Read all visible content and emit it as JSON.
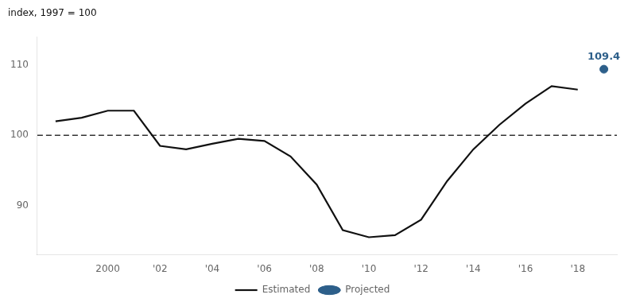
{
  "chart_data": {
    "type": "line",
    "y_label": "index, 1997 = 100",
    "x": [
      1998,
      1999,
      2000,
      2001,
      2002,
      2003,
      2004,
      2005,
      2006,
      2007,
      2008,
      2009,
      2010,
      2011,
      2012,
      2013,
      2014,
      2015,
      2016,
      2017,
      2018
    ],
    "series": [
      {
        "name": "Estimated",
        "color": "#111111",
        "values": [
          102.0,
          102.5,
          103.5,
          103.5,
          98.5,
          98.0,
          98.8,
          99.5,
          99.2,
          97.0,
          93.0,
          86.5,
          85.5,
          85.8,
          88.0,
          93.5,
          98.0,
          101.5,
          104.5,
          107.0,
          106.5
        ]
      },
      {
        "name": "Projected",
        "color": "#2d5f8a",
        "type": "scatter",
        "marker": "circle",
        "x": [
          2019
        ],
        "values": [
          109.4
        ],
        "data_labels": true
      }
    ],
    "hlines": [
      {
        "value": 100,
        "color": "#333333",
        "line_style": "dashed"
      }
    ],
    "xlim": [
      1997.3,
      2019.5
    ],
    "xticks": [
      2000,
      {
        "value": 2002,
        "label": "'02"
      },
      {
        "value": 2004,
        "label": "'04"
      },
      {
        "value": 2006,
        "label": "'06"
      },
      {
        "value": 2008,
        "label": "'08"
      },
      {
        "value": 2010,
        "label": "'10"
      },
      {
        "value": 2012,
        "label": "'12"
      },
      {
        "value": 2014,
        "label": "'14"
      },
      {
        "value": 2016,
        "label": "'16"
      },
      {
        "value": 2018,
        "label": "'18"
      }
    ],
    "ylim": [
      83,
      114
    ],
    "yticks": [
      90,
      100,
      110
    ],
    "grid": false,
    "legend": "bottom"
  }
}
